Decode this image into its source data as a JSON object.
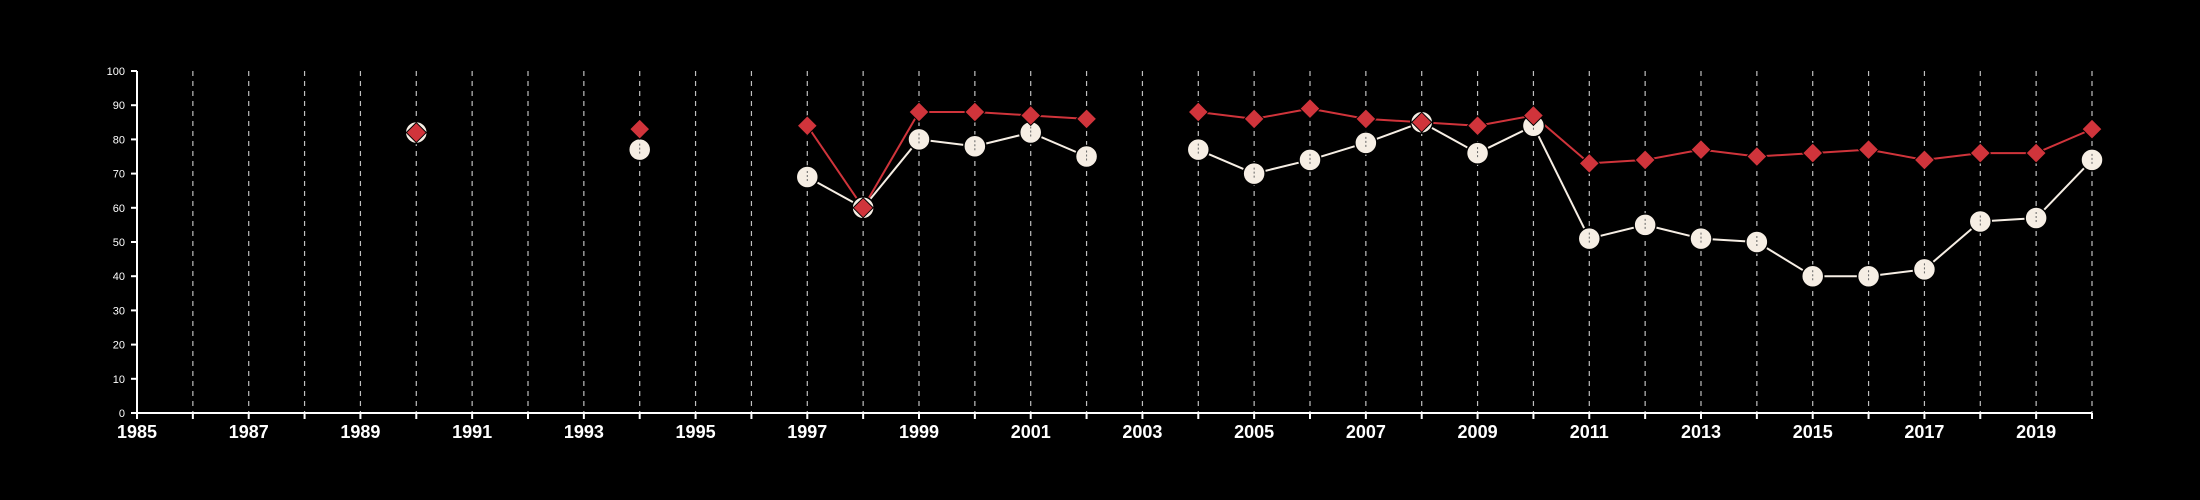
{
  "chart_data": {
    "type": "line",
    "x_range": [
      1985,
      2020
    ],
    "ylim": [
      0,
      100
    ],
    "x_ticks": [
      "1985",
      "1987",
      "1989",
      "1991",
      "1993",
      "1995",
      "1997",
      "1999",
      "2001",
      "2003",
      "2005",
      "2007",
      "2009",
      "2011",
      "2013",
      "2015",
      "2017",
      "2019"
    ],
    "y_ticks": [
      "0",
      "10",
      "20",
      "30",
      "40",
      "50",
      "60",
      "70",
      "80",
      "90",
      "100"
    ],
    "vertical_gridlines": "dashed, every year",
    "colors": {
      "background": "#000000",
      "series_red": "#d0343b",
      "series_cream": "#f6eee4",
      "axis": "#ffffff"
    },
    "series": [
      {
        "marker": "diamond",
        "color": "#d0343b",
        "x": [
          1990,
          1994,
          1997,
          1998,
          1999,
          2000,
          2001,
          2002,
          2004,
          2005,
          2006,
          2007,
          2008,
          2009,
          2010,
          2011,
          2012,
          2013,
          2014,
          2015,
          2016,
          2017,
          2018,
          2019,
          2020
        ],
        "y": [
          82,
          83,
          84,
          60,
          88,
          88,
          87,
          86,
          88,
          86,
          89,
          86,
          85,
          84,
          87,
          73,
          74,
          77,
          75,
          76,
          77,
          74,
          76,
          76,
          83
        ]
      },
      {
        "marker": "circle",
        "color": "#f6eee4",
        "x": [
          1990,
          1994,
          1997,
          1998,
          1999,
          2000,
          2001,
          2002,
          2004,
          2005,
          2006,
          2007,
          2008,
          2009,
          2010,
          2011,
          2012,
          2013,
          2014,
          2015,
          2016,
          2017,
          2018,
          2019,
          2020
        ],
        "y": [
          82,
          77,
          69,
          60,
          80,
          78,
          82,
          75,
          77,
          70,
          74,
          79,
          85,
          76,
          84,
          51,
          55,
          51,
          50,
          40,
          40,
          42,
          56,
          57,
          74
        ]
      }
    ]
  }
}
